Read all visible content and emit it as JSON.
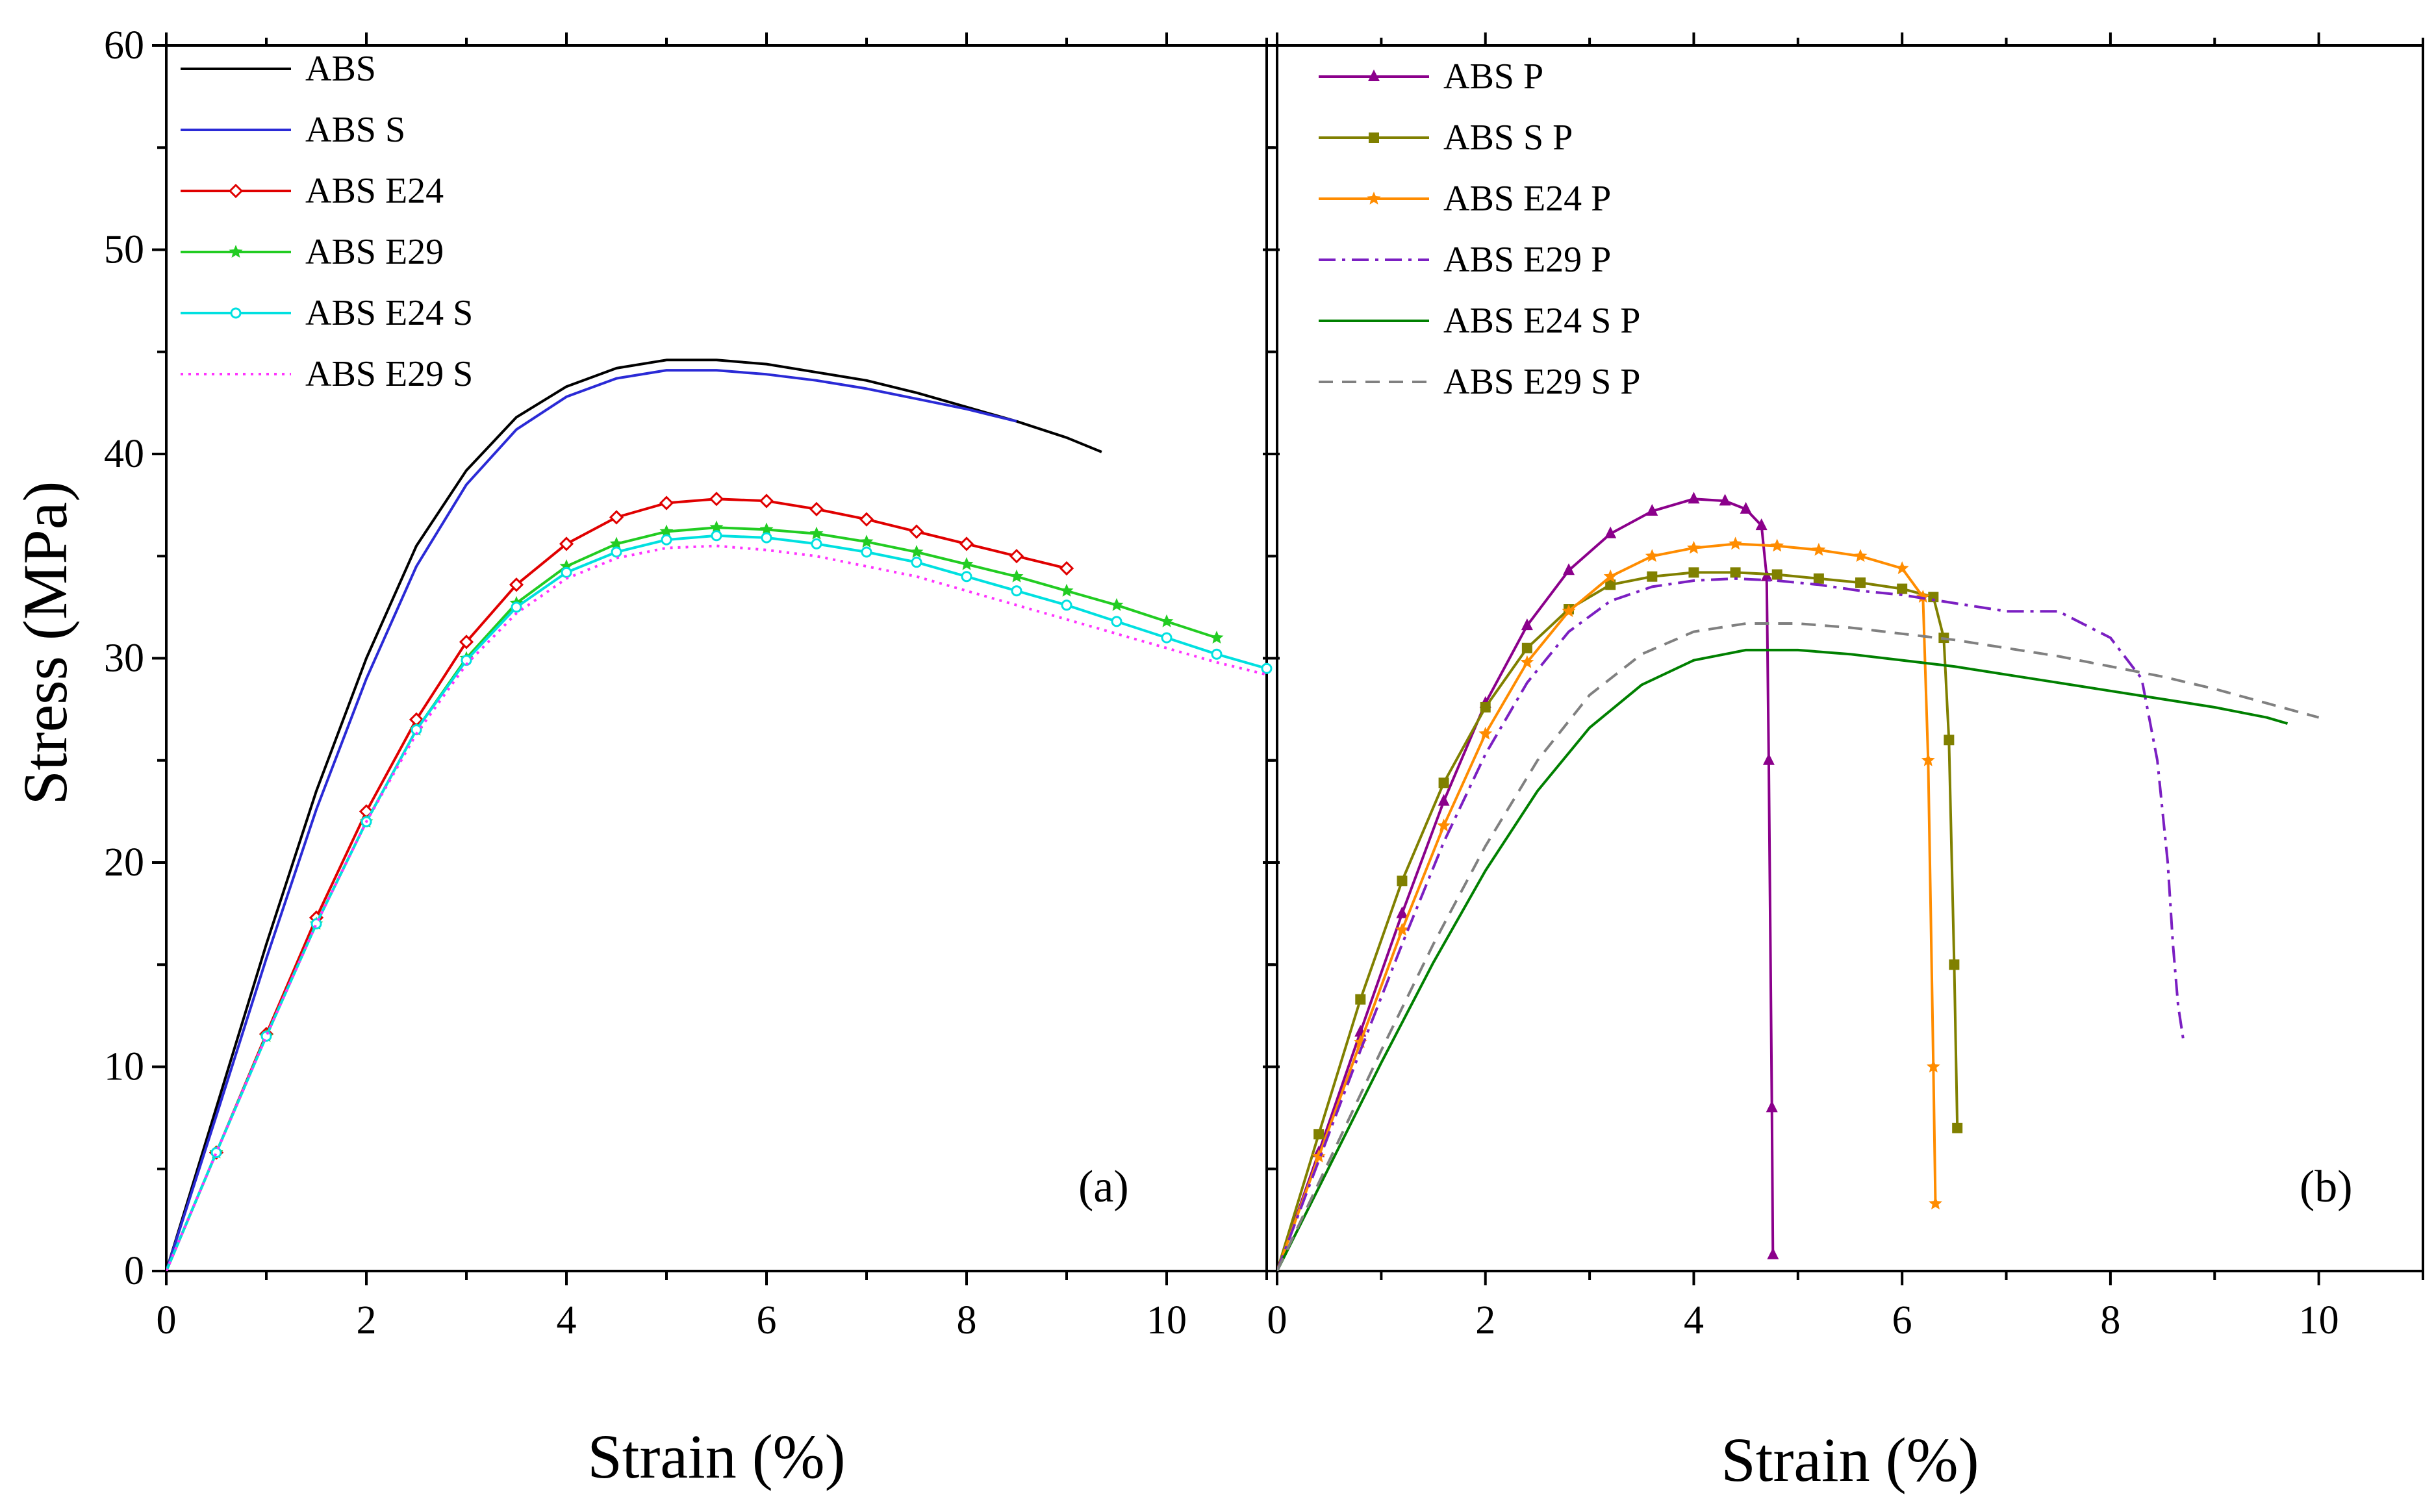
{
  "chart_data": [
    {
      "type": "line",
      "panel_label": "(a)",
      "xlabel": "Strain (%)",
      "ylabel": "Stress (MPa)",
      "xlim": [
        0,
        11
      ],
      "ylim": [
        0,
        60
      ],
      "x_ticks": [
        "0",
        "2",
        "4",
        "6",
        "8",
        "10"
      ],
      "y_ticks": [
        "0",
        "10",
        "20",
        "30",
        "40",
        "50",
        "60"
      ],
      "legend_position": "top-left",
      "series": [
        {
          "name": "ABS",
          "color": "#000000",
          "dash": "solid",
          "marker": "none",
          "x": [
            0,
            0.5,
            1,
            1.5,
            2,
            2.5,
            3,
            3.5,
            4,
            4.5,
            5,
            5.5,
            6,
            6.5,
            7,
            7.5,
            8,
            8.5,
            9,
            9.35
          ],
          "y": [
            0,
            8,
            16,
            23.5,
            30,
            35.5,
            39.2,
            41.8,
            43.3,
            44.2,
            44.6,
            44.6,
            44.4,
            44,
            43.6,
            43,
            42.3,
            41.6,
            40.8,
            40.1
          ]
        },
        {
          "name": "ABS S",
          "color": "#2a2ad6",
          "dash": "solid",
          "marker": "none",
          "x": [
            0,
            0.5,
            1,
            1.5,
            2,
            2.5,
            3,
            3.5,
            4,
            4.5,
            5,
            5.5,
            6,
            6.5,
            7,
            7.5,
            8,
            8.5
          ],
          "y": [
            0,
            7.6,
            15.3,
            22.6,
            29,
            34.5,
            38.5,
            41.2,
            42.8,
            43.7,
            44.1,
            44.1,
            43.9,
            43.6,
            43.2,
            42.7,
            42.2,
            41.6
          ]
        },
        {
          "name": "ABS E24",
          "color": "#e00000",
          "dash": "solid",
          "marker": "diamond",
          "x": [
            0,
            0.5,
            1,
            1.5,
            2,
            2.5,
            3,
            3.5,
            4,
            4.5,
            5,
            5.5,
            6,
            6.5,
            7,
            7.5,
            8,
            8.5,
            9
          ],
          "y": [
            0,
            5.8,
            11.6,
            17.3,
            22.5,
            27,
            30.8,
            33.6,
            35.6,
            36.9,
            37.6,
            37.8,
            37.7,
            37.3,
            36.8,
            36.2,
            35.6,
            35,
            34.4
          ]
        },
        {
          "name": "ABS E29",
          "color": "#22cc22",
          "dash": "solid",
          "marker": "star",
          "x": [
            0,
            0.5,
            1,
            1.5,
            2,
            2.5,
            3,
            3.5,
            4,
            4.5,
            5,
            5.5,
            6,
            6.5,
            7,
            7.5,
            8,
            8.5,
            9,
            9.5,
            10,
            10.5
          ],
          "y": [
            0,
            5.8,
            11.5,
            17,
            22,
            26.5,
            30,
            32.7,
            34.5,
            35.6,
            36.2,
            36.4,
            36.3,
            36.1,
            35.7,
            35.2,
            34.6,
            34,
            33.3,
            32.6,
            31.8,
            31
          ]
        },
        {
          "name": "ABS E24 S",
          "color": "#00e0e0",
          "dash": "solid",
          "marker": "circle",
          "x": [
            0,
            0.5,
            1,
            1.5,
            2,
            2.5,
            3,
            3.5,
            4,
            4.5,
            5,
            5.5,
            6,
            6.5,
            7,
            7.5,
            8,
            8.5,
            9,
            9.5,
            10,
            10.5,
            11
          ],
          "y": [
            0,
            5.8,
            11.5,
            17,
            22,
            26.5,
            29.9,
            32.5,
            34.2,
            35.2,
            35.8,
            36,
            35.9,
            35.6,
            35.2,
            34.7,
            34,
            33.3,
            32.6,
            31.8,
            31,
            30.2,
            29.5
          ]
        },
        {
          "name": "ABS E29 S",
          "color": "#ff33ff",
          "dash": "dot",
          "marker": "none",
          "x": [
            0,
            0.5,
            1,
            1.5,
            2,
            2.5,
            3,
            3.5,
            4,
            4.5,
            5,
            5.5,
            6,
            6.5,
            7,
            7.5,
            8,
            8.5,
            9,
            9.5,
            10,
            10.5,
            11
          ],
          "y": [
            0,
            5.8,
            11.5,
            17,
            22,
            26.3,
            29.7,
            32.2,
            33.9,
            34.9,
            35.4,
            35.5,
            35.3,
            35,
            34.5,
            34,
            33.3,
            32.6,
            31.9,
            31.2,
            30.5,
            29.8,
            29.2
          ]
        }
      ]
    },
    {
      "type": "line",
      "panel_label": "(b)",
      "xlabel": "Strain (%)",
      "ylabel": "",
      "xlim": [
        0,
        11
      ],
      "ylim": [
        0,
        60
      ],
      "x_ticks": [
        "0",
        "2",
        "4",
        "6",
        "8",
        "10"
      ],
      "y_ticks": [],
      "legend_position": "top-left",
      "series": [
        {
          "name": "ABS P",
          "color": "#8b008b",
          "dash": "solid",
          "marker": "triangle",
          "x": [
            0,
            0.4,
            0.8,
            1.2,
            1.6,
            2,
            2.4,
            2.8,
            3.2,
            3.6,
            4,
            4.3,
            4.5,
            4.65,
            4.7,
            4.72,
            4.75,
            4.76
          ],
          "y": [
            0,
            5.8,
            11.7,
            17.5,
            23,
            27.8,
            31.6,
            34.3,
            36.1,
            37.2,
            37.8,
            37.7,
            37.3,
            36.5,
            34,
            25,
            8,
            0.8
          ]
        },
        {
          "name": "ABS S P",
          "color": "#808000",
          "dash": "solid",
          "marker": "square",
          "x": [
            0,
            0.4,
            0.8,
            1.2,
            1.6,
            2,
            2.4,
            2.8,
            3.2,
            3.6,
            4,
            4.4,
            4.8,
            5.2,
            5.6,
            6,
            6.3,
            6.4,
            6.45,
            6.5,
            6.53
          ],
          "y": [
            0,
            6.7,
            13.3,
            19.1,
            23.9,
            27.6,
            30.5,
            32.4,
            33.6,
            34,
            34.2,
            34.2,
            34.1,
            33.9,
            33.7,
            33.4,
            33,
            31,
            26,
            15,
            7
          ]
        },
        {
          "name": "ABS E24 P",
          "color": "#ff8c00",
          "dash": "solid",
          "marker": "star",
          "x": [
            0,
            0.4,
            0.8,
            1.2,
            1.6,
            2,
            2.4,
            2.8,
            3.2,
            3.6,
            4,
            4.4,
            4.8,
            5.2,
            5.6,
            6,
            6.2,
            6.25,
            6.3,
            6.32
          ],
          "y": [
            0,
            5.6,
            11.2,
            16.7,
            21.8,
            26.3,
            29.8,
            32.3,
            34,
            35,
            35.4,
            35.6,
            35.5,
            35.3,
            35,
            34.4,
            33,
            25,
            10,
            3.3
          ]
        },
        {
          "name": "ABS E29 P",
          "color": "#7b1fc2",
          "dash": "dashdot",
          "marker": "none",
          "x": [
            0,
            0.4,
            0.8,
            1.2,
            1.6,
            2,
            2.4,
            2.8,
            3.2,
            3.6,
            4,
            4.4,
            4.8,
            5.2,
            5.6,
            6,
            6.5,
            7,
            7.5,
            8,
            8.3,
            8.45,
            8.55,
            8.6,
            8.65,
            8.7
          ],
          "y": [
            0,
            5.4,
            10.8,
            16,
            21,
            25.3,
            28.8,
            31.3,
            32.8,
            33.5,
            33.8,
            33.9,
            33.8,
            33.6,
            33.3,
            33.1,
            32.7,
            32.3,
            32.3,
            31,
            29,
            25,
            20,
            16,
            13,
            11.3
          ]
        },
        {
          "name": "ABS E24 S P",
          "color": "#008000",
          "dash": "solid",
          "marker": "none",
          "x": [
            0,
            0.5,
            1,
            1.5,
            2,
            2.5,
            3,
            3.5,
            4,
            4.5,
            5,
            5.5,
            6,
            6.5,
            7,
            7.5,
            8,
            8.5,
            9,
            9.5,
            9.7
          ],
          "y": [
            0,
            5.1,
            10.2,
            15.1,
            19.6,
            23.5,
            26.6,
            28.7,
            29.9,
            30.4,
            30.4,
            30.2,
            29.9,
            29.6,
            29.2,
            28.8,
            28.4,
            28,
            27.6,
            27.1,
            26.8
          ]
        },
        {
          "name": "ABS E29 S P",
          "color": "#808080",
          "dash": "dash",
          "marker": "none",
          "x": [
            0,
            0.5,
            1,
            1.5,
            2,
            2.5,
            3,
            3.5,
            4,
            4.5,
            5,
            5.5,
            6,
            6.5,
            7,
            7.5,
            8,
            8.5,
            9,
            9.5,
            10
          ],
          "y": [
            0,
            5.4,
            10.8,
            16,
            20.8,
            25,
            28.2,
            30.2,
            31.3,
            31.7,
            31.7,
            31.5,
            31.2,
            30.9,
            30.5,
            30.1,
            29.6,
            29.1,
            28.5,
            27.8,
            27.1
          ]
        }
      ]
    }
  ]
}
